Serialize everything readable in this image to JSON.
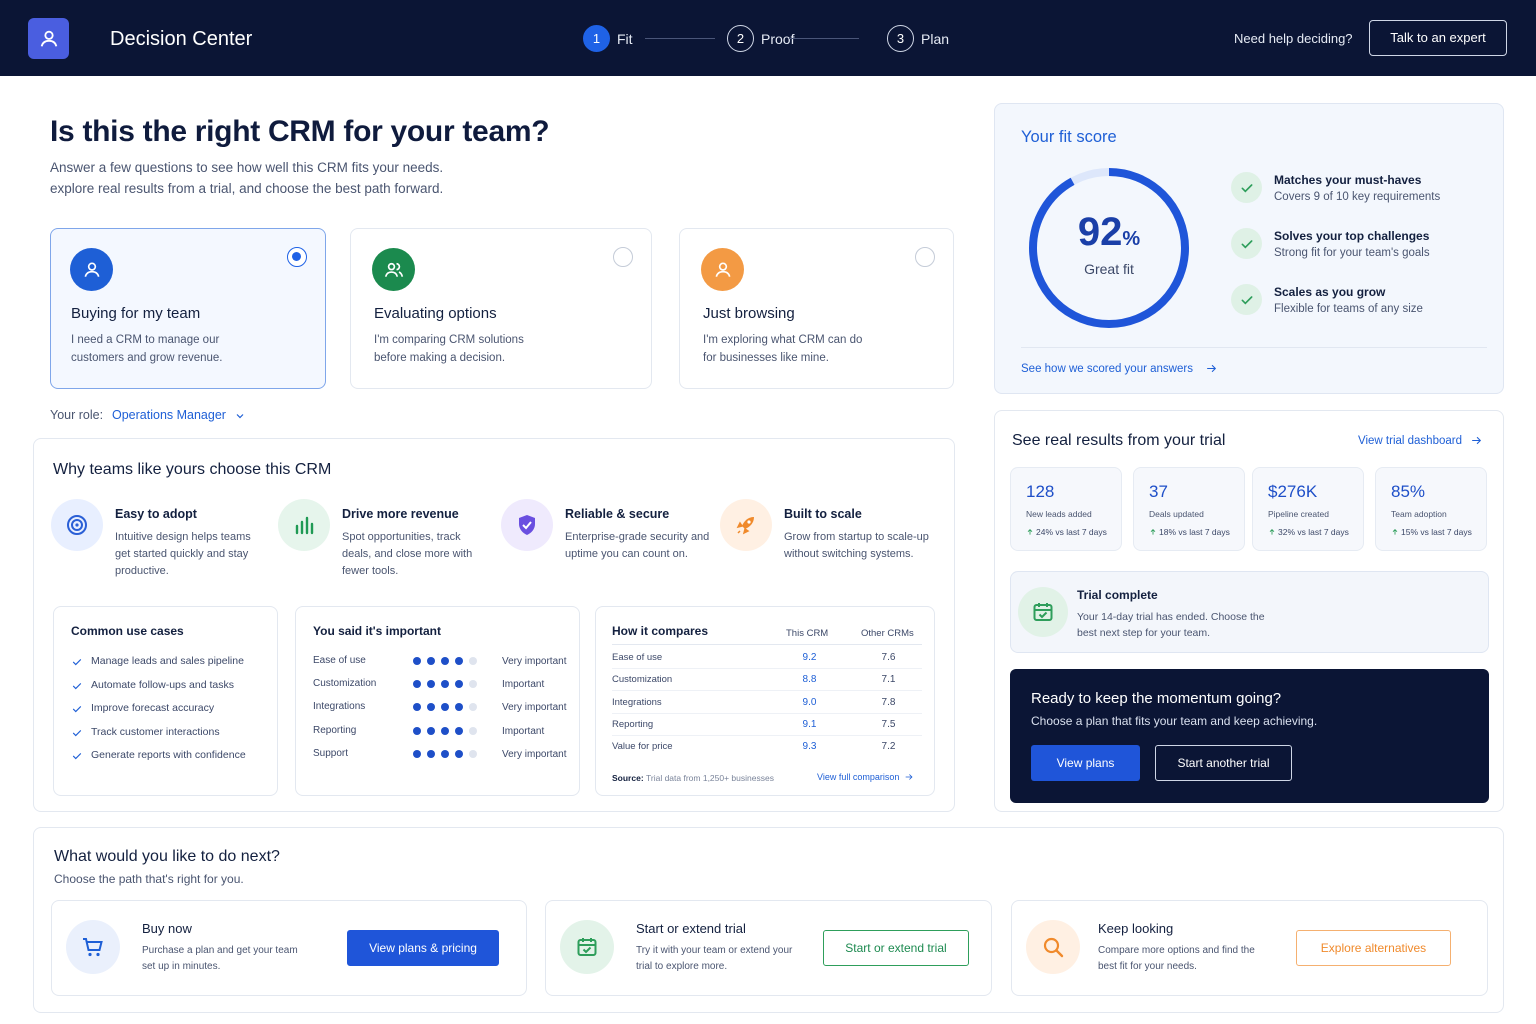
{
  "header": {
    "brand": "Decision Center",
    "steps": [
      {
        "num": "1",
        "label": "Fit",
        "active": true
      },
      {
        "num": "2",
        "label": "Proof",
        "active": false
      },
      {
        "num": "3",
        "label": "Plan",
        "active": false
      }
    ],
    "help": "Need help deciding?",
    "cta": "Talk to an expert"
  },
  "intro": {
    "title": "Is this the right CRM for your team?",
    "lines": [
      "Answer a few questions to see how well this CRM fits your needs.",
      "explore real results from a trial, and choose the best path forward."
    ]
  },
  "personas": [
    {
      "title": "Buying for my team",
      "desc": "I need a CRM to manage our customers and grow revenue.",
      "selected": true
    },
    {
      "title": "Evaluating options",
      "desc": "I'm comparing CRM solutions before making a decision.",
      "selected": false
    },
    {
      "title": "Just browsing",
      "desc": "I'm exploring what CRM can do for businesses like mine.",
      "selected": false
    }
  ],
  "role": {
    "label": "Your role:",
    "value": "Operations Manager"
  },
  "why": {
    "title": "Why teams like yours choose this CRM",
    "features": [
      {
        "title": "Easy to adopt",
        "desc": "Intuitive design helps teams get started quickly and stay productive."
      },
      {
        "title": "Drive more revenue",
        "desc": "Spot opportunities, track deals, and close more with fewer tools."
      },
      {
        "title": "Reliable & secure",
        "desc": "Enterprise-grade security and uptime you can count on."
      },
      {
        "title": "Built to scale",
        "desc": "Grow from startup to scale-up without switching systems."
      }
    ],
    "use_cases": {
      "title": "Common use cases",
      "items": [
        "Manage leads and sales pipeline",
        "Automate follow-ups and tasks",
        "Improve forecast accuracy",
        "Track customer interactions",
        "Generate reports with confidence"
      ]
    },
    "important": {
      "title": "You said it's important",
      "scale": 5,
      "rows": [
        {
          "name": "Ease of use",
          "level": 4,
          "label": "Very important"
        },
        {
          "name": "Customization",
          "level": 4,
          "label": "Important"
        },
        {
          "name": "Integrations",
          "level": 4,
          "label": "Very important"
        },
        {
          "name": "Reporting",
          "level": 4,
          "label": "Important"
        },
        {
          "name": "Support",
          "level": 4,
          "label": "Very important"
        }
      ]
    },
    "compare": {
      "title": "How it compares",
      "columns": [
        "This CRM",
        "Other CRMs"
      ],
      "rows": [
        [
          "Ease of use",
          "9.2",
          "7.6"
        ],
        [
          "Customization",
          "8.8",
          "7.1"
        ],
        [
          "Integrations",
          "9.0",
          "7.8"
        ],
        [
          "Reporting",
          "9.1",
          "7.5"
        ],
        [
          "Value for price",
          "9.3",
          "7.2"
        ]
      ],
      "source_label": "Source:",
      "source": "Trial data from 1,250+ businesses",
      "link": "View full comparison"
    }
  },
  "fit": {
    "title": "Your fit score",
    "score": 92,
    "ring_lim": [
      0,
      100
    ],
    "unit": "%",
    "verdict": "Great fit",
    "items": [
      {
        "title": "Matches your must-haves",
        "desc": "Covers 9 of 10 key requirements"
      },
      {
        "title": "Solves your top challenges",
        "desc": "Strong fit for your team's goals"
      },
      {
        "title": "Scales as you grow",
        "desc": "Flexible for teams of any size"
      }
    ],
    "link": "See how we scored your answers"
  },
  "trial": {
    "title": "See real results from your trial",
    "link": "View trial dashboard",
    "stats": [
      {
        "value": "128",
        "label": "New leads added",
        "change": "24% vs last 7 days"
      },
      {
        "value": "37",
        "label": "Deals updated",
        "change": "18% vs last 7 days"
      },
      {
        "value": "$276K",
        "label": "Pipeline created",
        "change": "32% vs last 7 days"
      },
      {
        "value": "85%",
        "label": "Team adoption",
        "change": "15% vs last 7 days"
      }
    ],
    "complete": {
      "title": "Trial complete",
      "desc": "Your 14-day trial has ended. Choose the best next step for your team."
    }
  },
  "momentum": {
    "title": "Ready to keep the momentum going?",
    "desc": "Choose a plan that fits your team and keep achieving.",
    "primary": "View plans",
    "secondary": "Start another trial"
  },
  "next": {
    "title": "What would you like to do next?",
    "subtitle": "Choose the path that's right for you.",
    "options": [
      {
        "title": "Buy now",
        "desc": "Purchase a plan and get your team set up in minutes.",
        "button": "View plans & pricing"
      },
      {
        "title": "Start or extend trial",
        "desc": "Try it with your team or extend your trial to explore more.",
        "button": "Start or extend trial"
      },
      {
        "title": "Keep looking",
        "desc": "Compare more options and find the best fit for your needs.",
        "button": "Explore alternatives"
      }
    ]
  }
}
